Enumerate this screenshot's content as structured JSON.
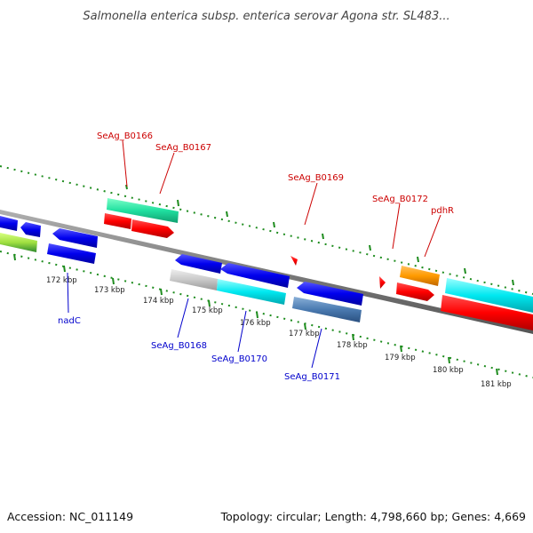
{
  "title": "Salmonella enterica subsp. enterica serovar Agona str. SL483...",
  "footer": {
    "accession": "Accession: NC_011149",
    "summary": "Topology: circular; Length: 4,798,660 bp; Genes: 4,669"
  },
  "ruler": {
    "tick_labels": [
      "172 kbp",
      "173 kbp",
      "174 kbp",
      "175 kbp",
      "176 kbp",
      "177 kbp",
      "178 kbp",
      "179 kbp",
      "180 kbp",
      "181 kbp"
    ]
  },
  "gene_labels": {
    "top": [
      "SeAg_B0166",
      "SeAg_B0167",
      "SeAg_B0169",
      "SeAg_B0172",
      "pdhR"
    ],
    "bottom": [
      "nadC",
      "SeAg_B0168",
      "SeAg_B0170",
      "SeAg_B0171"
    ]
  },
  "colors": {
    "top_label": "#cc0000",
    "bottom_label": "#0000cc",
    "tick": "#1e8c1e",
    "backbone": "#8a8a8a"
  }
}
